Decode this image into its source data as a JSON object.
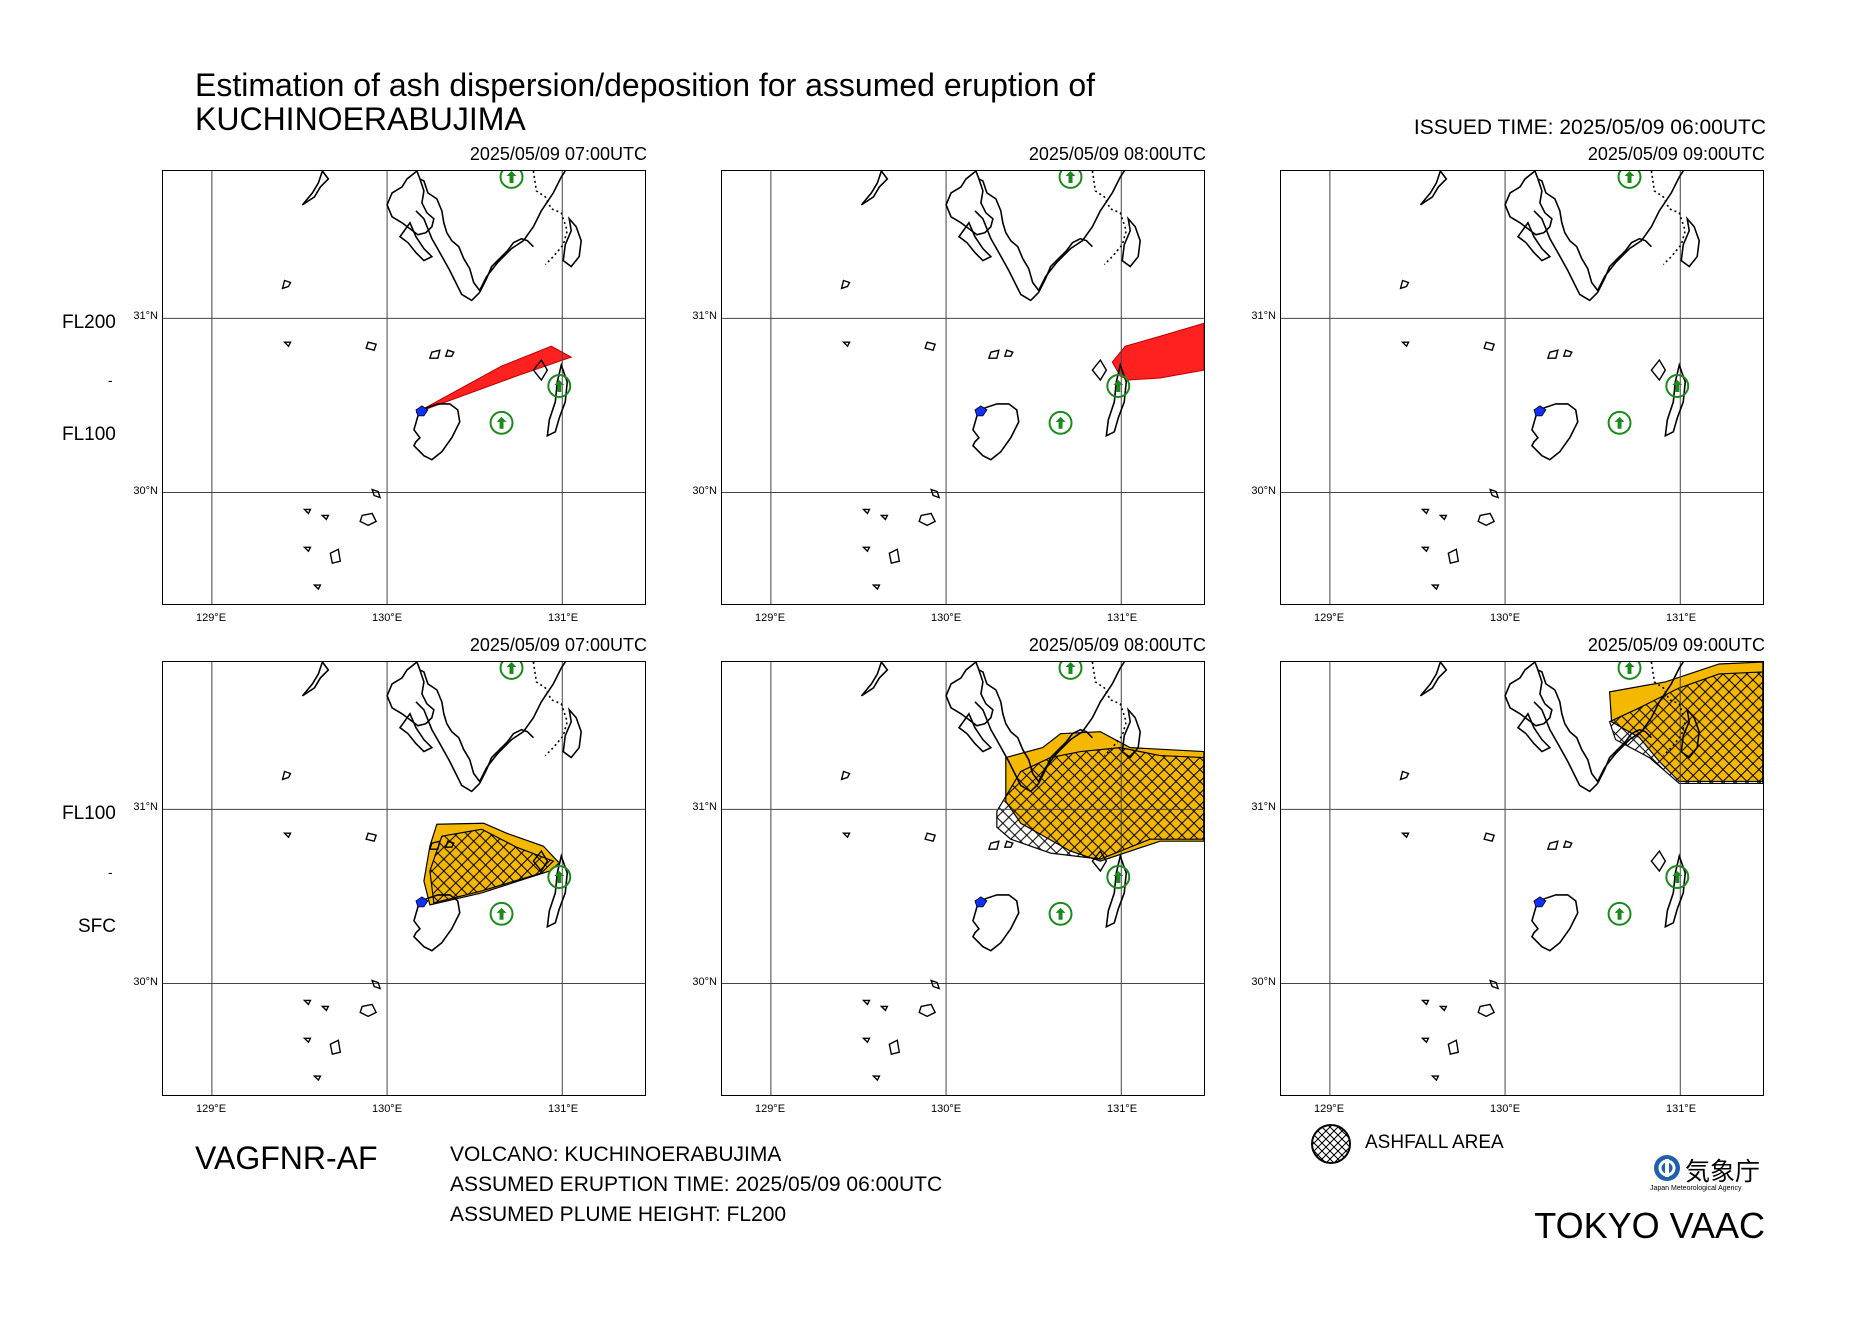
{
  "title_line1": "Estimation of ash dispersion/deposition for assumed eruption of",
  "title_line2": "KUCHINOERABUJIMA",
  "issued_time": "ISSUED TIME: 2025/05/09 06:00UTC",
  "panel_times": [
    "2025/05/09 07:00UTC",
    "2025/05/09 08:00UTC",
    "2025/05/09 09:00UTC"
  ],
  "upper_levels": {
    "top": "FL200",
    "dash": "-",
    "bottom": "FL100"
  },
  "lower_levels": {
    "top": "FL100",
    "dash": "-",
    "bottom": "SFC"
  },
  "lat_labels": [
    "31°N",
    "30°N"
  ],
  "lon_labels": [
    "129°E",
    "130°E",
    "131°E"
  ],
  "product_code": "VAGFNR-AF",
  "volcano": "VOLCANO: KUCHINOERABUJIMA",
  "eruption_time": "ASSUMED ERUPTION TIME: 2025/05/09 06:00UTC",
  "plume_height": "ASSUMED PLUME HEIGHT: FL200",
  "legend_ashfall": "ASHFALL AREA",
  "agency_name": "気象庁",
  "agency_sub": "Japan Meteorological Agency",
  "center": "TOKYO VAAC",
  "colors": {
    "ash_upper": "#ff2020",
    "ash_lower": "#f5b800",
    "volcano_marker": "#1a8a1a",
    "source": "#1030ff"
  }
}
